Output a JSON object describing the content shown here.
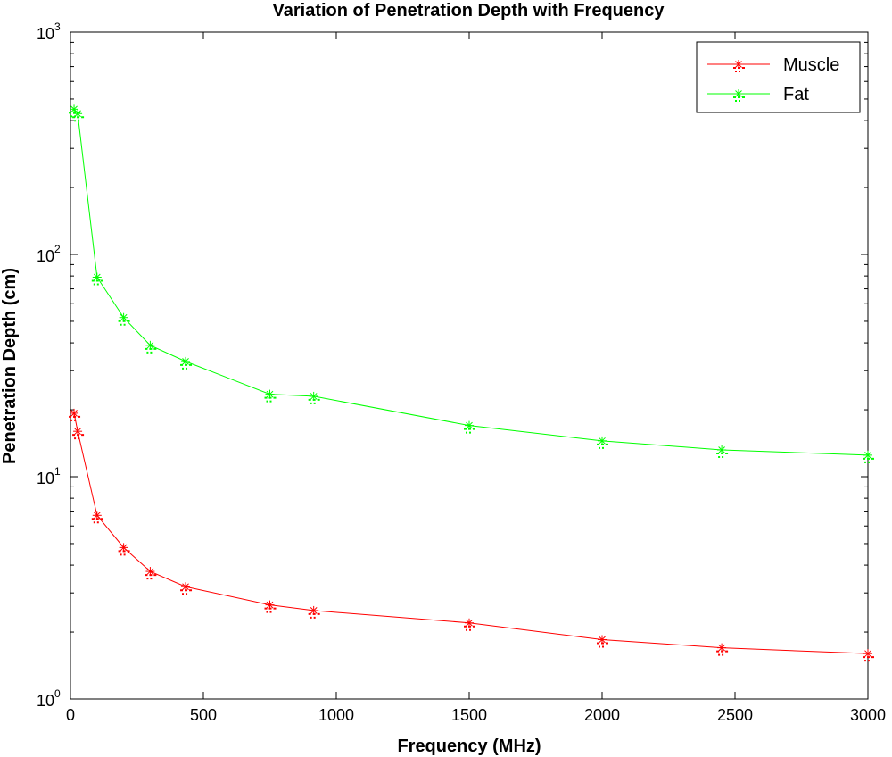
{
  "chart_data": {
    "type": "line",
    "title": "Variation of Penetration Depth with Frequency",
    "xlabel": "Frequency (MHz)",
    "ylabel": "Penetration Depth (cm)",
    "xlim": [
      0,
      3000
    ],
    "ylim": [
      1,
      1000
    ],
    "yscale": "log",
    "grid": false,
    "legend_position": "top-right",
    "x_ticks": [
      0,
      500,
      1000,
      1500,
      2000,
      2500,
      3000
    ],
    "x_tick_labels": [
      "0",
      "500",
      "1000",
      "1500",
      "2000",
      "2500",
      "3000"
    ],
    "y_ticks": [
      1,
      10,
      100,
      1000
    ],
    "y_tick_labels": [
      {
        "base": "10",
        "exp": "0"
      },
      {
        "base": "10",
        "exp": "1"
      },
      {
        "base": "10",
        "exp": "2"
      },
      {
        "base": "10",
        "exp": "3"
      }
    ],
    "series": [
      {
        "name": "Muscle",
        "color": "#ff0000",
        "marker": "asterisk",
        "x": [
          13.56,
          27.12,
          100,
          200,
          300,
          433,
          750,
          915,
          1500,
          2000,
          2450,
          3000
        ],
        "y": [
          19.3,
          16.0,
          6.7,
          4.8,
          3.75,
          3.2,
          2.65,
          2.5,
          2.2,
          1.85,
          1.7,
          1.6
        ]
      },
      {
        "name": "Fat",
        "color": "#00ff00",
        "marker": "asterisk",
        "x": [
          13.56,
          27.12,
          100,
          200,
          300,
          433,
          750,
          915,
          1500,
          2000,
          2450,
          3000
        ],
        "y": [
          450,
          430,
          79,
          52,
          39,
          33,
          23.5,
          23,
          17,
          14.5,
          13.2,
          12.5
        ]
      }
    ]
  }
}
